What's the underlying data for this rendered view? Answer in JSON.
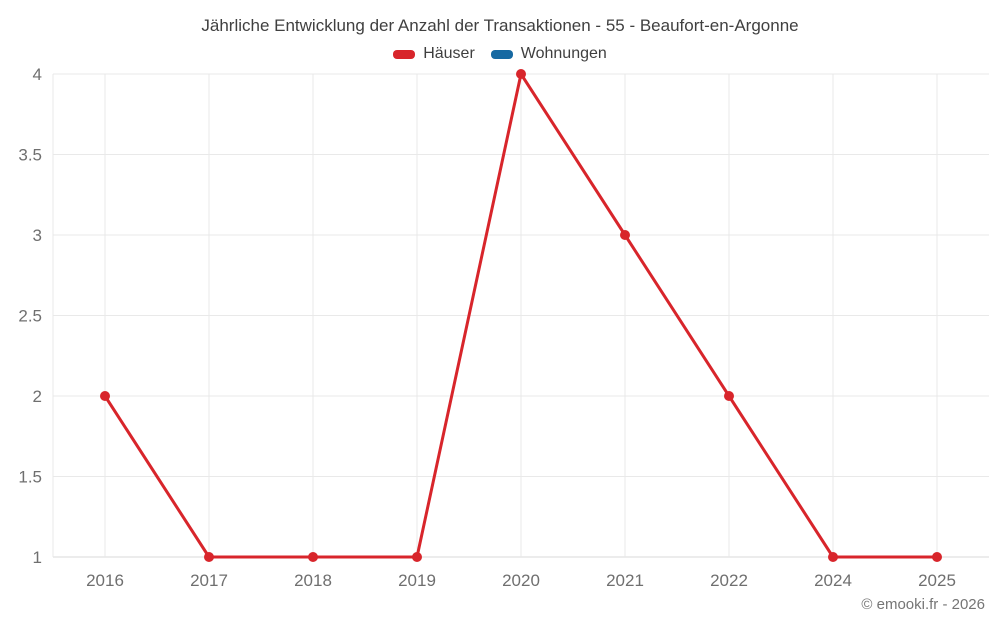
{
  "chart_data": {
    "type": "line",
    "title": "Jährliche Entwicklung der Anzahl der Transaktionen - 55 - Beaufort-en-Argonne",
    "categories": [
      "2016",
      "2017",
      "2018",
      "2019",
      "2020",
      "2021",
      "2022",
      "2024",
      "2025"
    ],
    "series": [
      {
        "name": "Häuser",
        "color": "#d8252b",
        "values": [
          2,
          1,
          1,
          1,
          4,
          3,
          2,
          1,
          1
        ]
      },
      {
        "name": "Wohnungen",
        "color": "#1669a2",
        "values": []
      }
    ],
    "xlabel": "",
    "ylabel": "",
    "ylim": [
      1,
      4
    ],
    "yticks": [
      1,
      1.5,
      2,
      2.5,
      3,
      3.5,
      4
    ],
    "grid": true,
    "legend_position": "top",
    "footer": "© emooki.fr - 2026",
    "colors": {
      "grid": "#e9e9e9",
      "axis": "#d9d9d9",
      "axis_text": "#6f6f6f",
      "title_text": "#404040",
      "footer_text": "#757575"
    }
  }
}
